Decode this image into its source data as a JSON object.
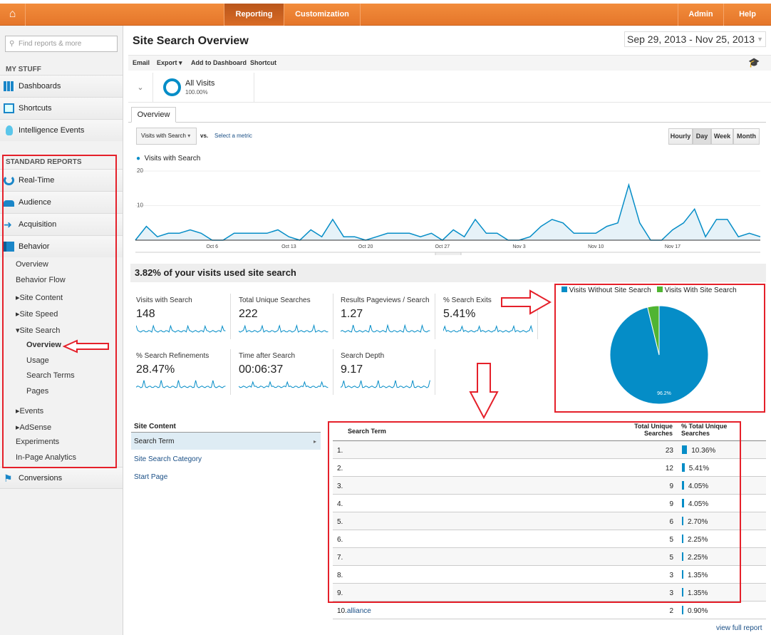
{
  "topbar": {
    "home_icon": "home-icon",
    "tabs": [
      {
        "label": "Reporting",
        "active": true
      },
      {
        "label": "Customization"
      }
    ],
    "admin": "Admin",
    "help": "Help"
  },
  "sidebar": {
    "search_placeholder": "Find reports & more",
    "my_stuff": "MY STUFF",
    "my_items": [
      {
        "label": "Dashboards",
        "icon": "grid-icon"
      },
      {
        "label": "Shortcuts",
        "icon": "shortcut-icon"
      },
      {
        "label": "Intelligence Events",
        "icon": "lightbulb-icon"
      }
    ],
    "standard_reports": "STANDARD REPORTS",
    "std_items": [
      {
        "label": "Real-Time",
        "icon": "clock-icon"
      },
      {
        "label": "Audience",
        "icon": "people-icon"
      },
      {
        "label": "Acquisition",
        "icon": "arrows-icon"
      },
      {
        "label": "Behavior",
        "icon": "window-icon"
      }
    ],
    "behavior": {
      "overview": "Overview",
      "flow": "Behavior Flow",
      "site_content": "Site Content",
      "site_speed": "Site Speed",
      "site_search": "Site Search",
      "ss_items": [
        "Overview",
        "Usage",
        "Search Terms",
        "Pages"
      ],
      "events": "Events",
      "adsense": "AdSense",
      "experiments": "Experiments",
      "inpage": "In-Page Analytics"
    },
    "conversions": "Conversions"
  },
  "header": {
    "title": "Site Search Overview",
    "date_range": "Sep 29, 2013 - Nov 25, 2013"
  },
  "toolbar": {
    "email": "Email",
    "export": "Export",
    "add_dashboard": "Add to Dashboard",
    "shortcut": "Shortcut"
  },
  "segment": {
    "name": "All Visits",
    "pct": "100.00%"
  },
  "tabs": {
    "overview": "Overview"
  },
  "metric_select": {
    "selected": "Visits with Search",
    "vs": "vs.",
    "select": "Select a metric"
  },
  "granularity": {
    "options": [
      "Hourly",
      "Day",
      "Week",
      "Month"
    ],
    "selected": "Day"
  },
  "chart_data": {
    "type": "area",
    "series": [
      {
        "name": "Visits with Search",
        "color": "#058dc7",
        "values": [
          0,
          4,
          1,
          2,
          2,
          3,
          2,
          0,
          0,
          2,
          2,
          2,
          2,
          3,
          1,
          0,
          3,
          1,
          6,
          1,
          1,
          0,
          1,
          2,
          2,
          2,
          1,
          2,
          0,
          3,
          1,
          6,
          2,
          2,
          0,
          0,
          1,
          4,
          6,
          5,
          2,
          2,
          2,
          4,
          5,
          16,
          5,
          0,
          0,
          3,
          5,
          9,
          1,
          6,
          6,
          1,
          2,
          1
        ]
      }
    ],
    "x_start": "Sep 29",
    "x_ticks": [
      "Oct 6",
      "Oct 13",
      "Oct 20",
      "Oct 27",
      "Nov 3",
      "Nov 10",
      "Nov 17"
    ],
    "y_ticks": [
      "10",
      "20"
    ],
    "ylim": [
      0,
      20
    ],
    "grid": true,
    "legend": "top-left"
  },
  "summary": "3.82% of your visits used site search",
  "metrics": [
    {
      "label": "Visits with Search",
      "value": "148"
    },
    {
      "label": "Total Unique Searches",
      "value": "222"
    },
    {
      "label": "Results Pageviews / Search",
      "value": "1.27"
    },
    {
      "label": "% Search Exits",
      "value": "5.41%"
    },
    {
      "label": "% Search Refinements",
      "value": "28.47%"
    },
    {
      "label": "Time after Search",
      "value": "00:06:37"
    },
    {
      "label": "Search Depth",
      "value": "9.17"
    }
  ],
  "pie": {
    "legend": [
      {
        "label": "Visits Without Site Search",
        "color": "#058dc7"
      },
      {
        "label": "Visits With Site Search",
        "color": "#50b432"
      }
    ],
    "values": [
      96.2,
      3.8
    ],
    "slice_label": "96.2%"
  },
  "site_content": {
    "title": "Site Content",
    "items": [
      "Search Term",
      "Site Search Category",
      "Start Page"
    ]
  },
  "table": {
    "headers": [
      "Search Term",
      "Total Unique Searches",
      "% Total Unique Searches"
    ],
    "rows": [
      {
        "n": "1.",
        "term": "",
        "count": "23",
        "pct": "10.36%",
        "v": 10.36
      },
      {
        "n": "2.",
        "term": "",
        "count": "12",
        "pct": "5.41%",
        "v": 5.41
      },
      {
        "n": "3.",
        "term": "",
        "count": "9",
        "pct": "4.05%",
        "v": 4.05
      },
      {
        "n": "4.",
        "term": "",
        "count": "9",
        "pct": "4.05%",
        "v": 4.05
      },
      {
        "n": "5.",
        "term": "",
        "count": "6",
        "pct": "2.70%",
        "v": 2.7
      },
      {
        "n": "6.",
        "term": "",
        "count": "5",
        "pct": "2.25%",
        "v": 2.25
      },
      {
        "n": "7.",
        "term": "",
        "count": "5",
        "pct": "2.25%",
        "v": 2.25
      },
      {
        "n": "8.",
        "term": "",
        "count": "3",
        "pct": "1.35%",
        "v": 1.35
      },
      {
        "n": "9.",
        "term": "",
        "count": "3",
        "pct": "1.35%",
        "v": 1.35
      },
      {
        "n": "10.",
        "term": "alliance",
        "count": "2",
        "pct": "0.90%",
        "v": 0.9
      }
    ],
    "view_full": "view full report"
  },
  "annotation_color": "#e5202a"
}
